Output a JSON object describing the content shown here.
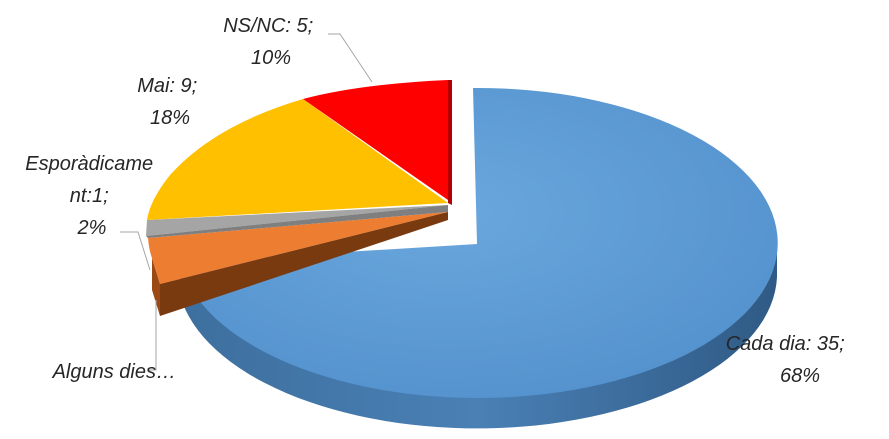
{
  "chart_data": {
    "type": "pie",
    "style": "3d-exploded",
    "slices": [
      {
        "name": "Cada dia",
        "count": 35,
        "percent": 68,
        "label": [
          "Cada dia: 35;",
          "68%"
        ],
        "color": "#5B9BD5"
      },
      {
        "name": "Alguns dies",
        "count": 2,
        "percent": 4,
        "label": [
          "Alguns dies…"
        ],
        "color": "#ED7D31"
      },
      {
        "name": "Esporàdicament",
        "count": 1,
        "percent": 2,
        "label": [
          "Esporàdicame",
          "nt:1;",
          "2%"
        ],
        "color": "#A5A5A5"
      },
      {
        "name": "Mai",
        "count": 9,
        "percent": 18,
        "label": [
          "Mai: 9;",
          "18%"
        ],
        "color": "#FFC000"
      },
      {
        "name": "NS/NC",
        "count": 5,
        "percent": 10,
        "label": [
          "NS/NC: 5;",
          "10%"
        ],
        "color": "#FF0000"
      }
    ]
  }
}
